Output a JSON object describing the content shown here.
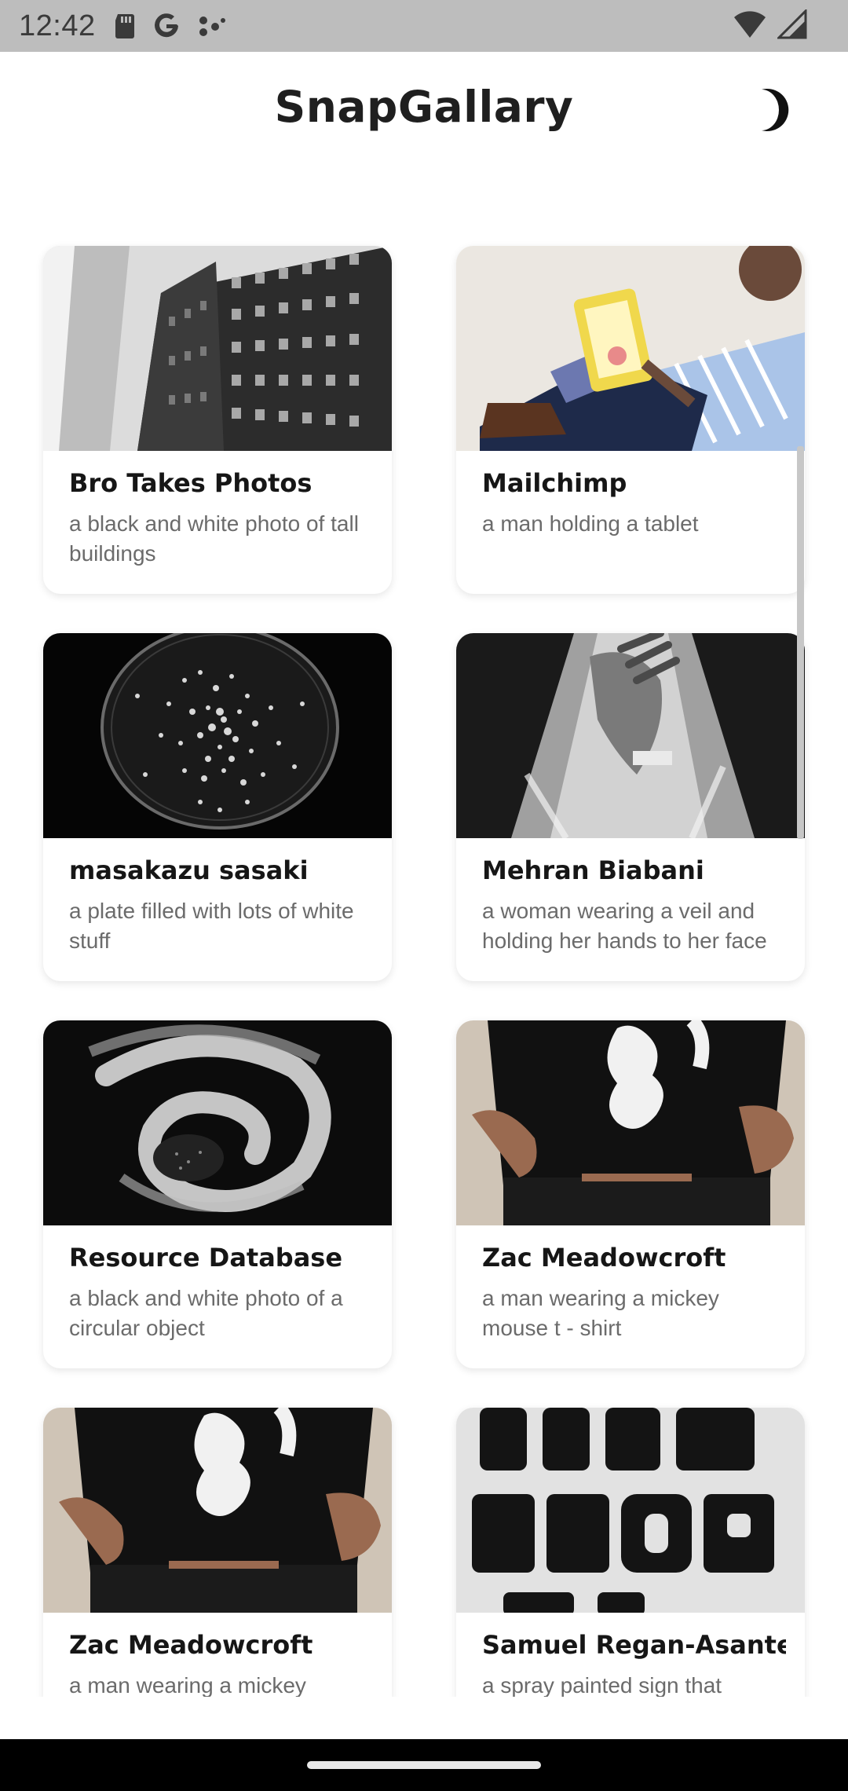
{
  "status_bar": {
    "time": "12:42",
    "icons": [
      "sd-card-icon",
      "google-icon",
      "dots-icon",
      "wifi-icon",
      "signal-icon"
    ]
  },
  "app_bar": {
    "title": "SnapGallary",
    "theme_toggle_icon": "moon-icon"
  },
  "gallery": {
    "cards": [
      {
        "title": "Bro Takes Photos",
        "description": "a black and white photo of tall buildings",
        "image": "buildings"
      },
      {
        "title": "Mailchimp",
        "description": "a man holding a tablet",
        "image": "tablet"
      },
      {
        "title": "masakazu sasaki",
        "description": "a plate filled with lots of white stuff",
        "image": "plate"
      },
      {
        "title": "Mehran Biabani",
        "description": "a woman wearing a veil and holding her hands to her face",
        "image": "veil"
      },
      {
        "title": "Resource Database",
        "description": "a black and white photo of a circular object",
        "image": "swirl"
      },
      {
        "title": "Zac Meadowcroft",
        "description": "a man wearing a mickey mouse t - shirt",
        "image": "tshirt"
      },
      {
        "title": "Zac Meadowcroft",
        "description": "a man wearing a mickey mouse t - shirt",
        "image": "tshirt"
      },
      {
        "title": "Samuel Regan-Asante",
        "description": "a spray painted sign that",
        "image": "sign"
      }
    ]
  },
  "colors": {
    "status_bar_bg": "#bdbdbd",
    "card_bg": "#ffffff",
    "title_text": "#161616",
    "desc_text": "#6b6b6b"
  }
}
